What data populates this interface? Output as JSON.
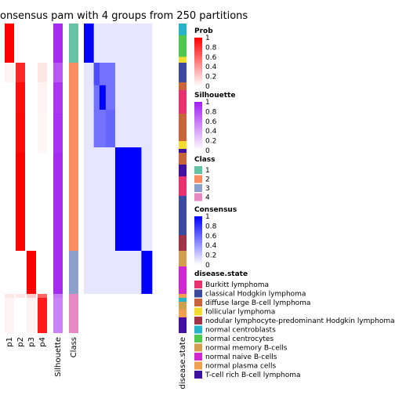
{
  "chart_data": {
    "type": "heatmap",
    "title": "onsensus pam with 4 groups from 250 partitions",
    "column_annotations": [
      "p1",
      "p2",
      "p3",
      "p4",
      "Silhouette",
      "Class"
    ],
    "row_annotation": "disease.state",
    "sample_groups": [
      {
        "class": 1,
        "n": 4
      },
      {
        "class": 2,
        "n": 30
      },
      {
        "class": 3,
        "n": 6
      },
      {
        "class": 4,
        "n": 3
      }
    ],
    "sample_blocks": [
      {
        "p": [
          1.0,
          0.0,
          0.0,
          0.0
        ],
        "sil": 0.95,
        "cls": 1,
        "disease": "normal centroblasts",
        "span": 0.6
      },
      {
        "p": [
          1.0,
          0.0,
          0.0,
          0.0
        ],
        "sil": 0.95,
        "cls": 1,
        "disease": "normal centrocytes",
        "span": 1.1
      },
      {
        "p": [
          1.0,
          0.0,
          0.0,
          0.0
        ],
        "sil": 0.95,
        "cls": 1,
        "disease": "follicular lymphoma",
        "span": 0.3
      },
      {
        "p": [
          0.05,
          0.85,
          0.0,
          0.1
        ],
        "sil": 0.75,
        "cls": 2,
        "disease": "classical Hodgkin lymphoma",
        "span": 1.0
      },
      {
        "p": [
          0.0,
          0.95,
          0.0,
          0.05
        ],
        "sil": 0.9,
        "cls": 2,
        "disease": "diffuse large B-cell lymphoma",
        "span": 0.4
      },
      {
        "p": [
          0.0,
          0.95,
          0.0,
          0.05
        ],
        "sil": 0.9,
        "cls": 2,
        "disease": "Burkitt lymphoma",
        "span": 1.2
      },
      {
        "p": [
          0.0,
          0.97,
          0.0,
          0.03
        ],
        "sil": 0.92,
        "cls": 2,
        "disease": "diffuse large B-cell lymphoma",
        "span": 1.4
      },
      {
        "p": [
          0.0,
          0.97,
          0.0,
          0.03
        ],
        "sil": 0.92,
        "cls": 2,
        "disease": "follicular lymphoma",
        "span": 0.4
      },
      {
        "p": [
          0.0,
          0.97,
          0.0,
          0.03
        ],
        "sil": 0.92,
        "cls": 2,
        "disease": "T-cell rich B-cell lymphoma",
        "span": 0.2
      },
      {
        "p": [
          0.0,
          1.0,
          0.0,
          0.0
        ],
        "sil": 0.95,
        "cls": 2,
        "disease": "diffuse large B-cell lymphoma",
        "span": 0.6
      },
      {
        "p": [
          0.0,
          1.0,
          0.0,
          0.0
        ],
        "sil": 0.95,
        "cls": 2,
        "disease": "T-cell rich B-cell lymphoma",
        "span": 0.6
      },
      {
        "p": [
          0.0,
          1.0,
          0.0,
          0.0
        ],
        "sil": 0.95,
        "cls": 2,
        "disease": "Burkitt lymphoma",
        "span": 1.0
      },
      {
        "p": [
          0.0,
          1.0,
          0.0,
          0.0
        ],
        "sil": 0.95,
        "cls": 2,
        "disease": "classical Hodgkin lymphoma",
        "span": 2.0
      },
      {
        "p": [
          0.0,
          1.0,
          0.0,
          0.0
        ],
        "sil": 0.95,
        "cls": 2,
        "disease": "nodular lymphocyte-predominant Hodgkin lymphoma",
        "span": 0.8
      },
      {
        "p": [
          0.0,
          0.0,
          1.0,
          0.0
        ],
        "sil": 0.95,
        "cls": 3,
        "disease": "normal memory B-cells",
        "span": 0.8
      },
      {
        "p": [
          0.0,
          0.0,
          1.0,
          0.0
        ],
        "sil": 0.95,
        "cls": 3,
        "disease": "normal naive B-cells",
        "span": 1.4
      },
      {
        "p": [
          0.1,
          0.1,
          0.2,
          0.6
        ],
        "sil": 0.6,
        "cls": 4,
        "disease": "normal plasma cells",
        "span": 0.2
      },
      {
        "p": [
          0.05,
          0.0,
          0.05,
          0.9
        ],
        "sil": 0.55,
        "cls": 4,
        "disease": "normal centroblasts",
        "span": 0.2
      },
      {
        "p": [
          0.05,
          0.0,
          0.05,
          0.9
        ],
        "sil": 0.55,
        "cls": 4,
        "disease": "normal memory B-cells",
        "span": 0.4
      },
      {
        "p": [
          0.05,
          0.0,
          0.05,
          0.9
        ],
        "sil": 0.55,
        "cls": 4,
        "disease": "normal plasma cells",
        "span": 0.4
      },
      {
        "p": [
          0.05,
          0.0,
          0.05,
          0.9
        ],
        "sil": 0.55,
        "cls": 4,
        "disease": "T-cell rich B-cell lymphoma",
        "span": 0.8
      }
    ],
    "consensus_blocks": [
      {
        "rows": [
          0,
          1
        ],
        "cols": [
          0,
          1
        ],
        "value": 1.0
      },
      {
        "rows": [
          1,
          2
        ],
        "cols": [
          1,
          2
        ],
        "value": 0.7
      },
      {
        "rows": [
          2,
          3
        ],
        "cols": [
          2,
          3
        ],
        "value": 1.0
      },
      {
        "rows": [
          3,
          4
        ],
        "cols": [
          3,
          4
        ],
        "value": 0.6
      },
      {
        "rows": [
          1,
          4
        ],
        "cols": [
          1,
          4
        ],
        "value": 0.55
      },
      {
        "rows": [
          4,
          5
        ],
        "cols": [
          4,
          5
        ],
        "value": 1.0
      },
      {
        "rows": [
          5,
          6
        ],
        "cols": [
          5,
          6
        ],
        "value": 1.0
      },
      {
        "rows": [
          0,
          6
        ],
        "cols": [
          0,
          6
        ],
        "value": 0.1
      }
    ],
    "legends": [
      {
        "title": "Prob",
        "ticks": [
          "1",
          "0.8",
          "0.6",
          "0.4",
          "0.2",
          "0"
        ],
        "colors": [
          "#ff0000",
          "#ffffff"
        ]
      },
      {
        "title": "Silhouette",
        "ticks": [
          "1",
          "0.8",
          "0.6",
          "0.4",
          "0.2",
          "0"
        ],
        "colors": [
          "#a020f0",
          "#ffffff"
        ]
      },
      {
        "title": "Class",
        "items": [
          {
            "label": "1",
            "color": "#66c2a5"
          },
          {
            "label": "2",
            "color": "#fc8d62"
          },
          {
            "label": "3",
            "color": "#8da0cb"
          },
          {
            "label": "4",
            "color": "#e78ac3"
          }
        ]
      },
      {
        "title": "Consensus",
        "ticks": [
          "1",
          "0.8",
          "0.6",
          "0.4",
          "0.2",
          "0"
        ],
        "colors": [
          "#0000ff",
          "#ffffff"
        ]
      },
      {
        "title": "disease.state",
        "items": [
          {
            "label": "Burkitt lymphoma",
            "color": "#e6326e"
          },
          {
            "label": "classical Hodgkin lymphoma",
            "color": "#3a4a9e"
          },
          {
            "label": "diffuse large B-cell lymphoma",
            "color": "#c8643c"
          },
          {
            "label": "follicular lymphoma",
            "color": "#f0dc32"
          },
          {
            "label": "nodular lymphocyte-predominant Hodgkin lymphoma",
            "color": "#a0324a"
          },
          {
            "label": "normal centroblasts",
            "color": "#28b4c8"
          },
          {
            "label": "normal centrocytes",
            "color": "#50c850"
          },
          {
            "label": "normal memory B-cells",
            "color": "#d0a050"
          },
          {
            "label": "normal naive B-cells",
            "color": "#d028d0"
          },
          {
            "label": "normal plasma cells",
            "color": "#f0a050"
          },
          {
            "label": "T-cell rich B-cell lymphoma",
            "color": "#4010a0"
          }
        ]
      }
    ]
  }
}
